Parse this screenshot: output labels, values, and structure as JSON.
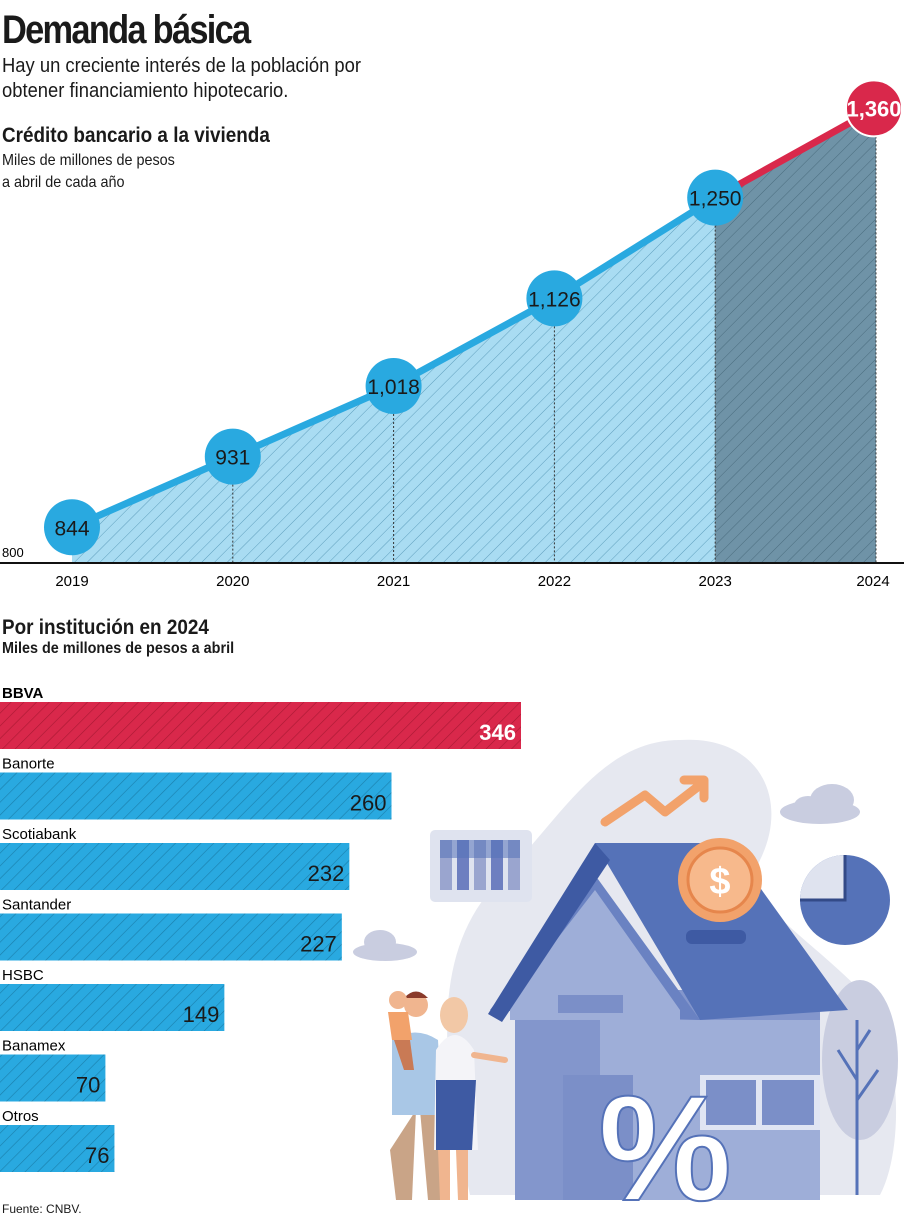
{
  "header": {
    "title": "Demanda básica",
    "subtitle": "Hay un creciente interés de la población por obtener financiamiento hipotecario."
  },
  "chart_data": [
    {
      "type": "area",
      "title": "Crédito bancario a la vivienda",
      "unit_line1": "Miles de millones de pesos",
      "unit_line2": "a abril de cada año",
      "x": [
        "2019",
        "2020",
        "2021",
        "2022",
        "2023",
        "2024"
      ],
      "values": [
        844,
        931,
        1018,
        1126,
        1250,
        1360
      ],
      "labels": [
        "844",
        "931",
        "1,018",
        "1,126",
        "1,250",
        "1,360"
      ],
      "y_min_label": "800",
      "ylim": [
        800,
        1390
      ],
      "highlight_index": 5
    },
    {
      "type": "bar",
      "title": "Por institución en 2024",
      "unit": "Miles de millones de pesos a abril",
      "categories": [
        "BBVA",
        "Banorte",
        "Scotiabank",
        "Santander",
        "HSBC",
        "Banamex",
        "Otros"
      ],
      "values": [
        346,
        260,
        232,
        227,
        149,
        70,
        76
      ],
      "highlight_index": 0
    }
  ],
  "footer": {
    "source": "Fuente: CNBV."
  },
  "colors": {
    "blue_line": "#29a9e0",
    "blue_fill": "#a9dcf2",
    "red": "#d9284b",
    "dark_area": "#6f93a7",
    "illustration_blue": "#5572b8",
    "illustration_light": "#e6e8f0"
  },
  "illustration": {
    "icons": [
      "house-icon",
      "coin-dollar-icon",
      "percent-icon",
      "family-icon",
      "trend-arrow-icon",
      "pie-chart-icon",
      "bar-chart-icon",
      "cloud-icon",
      "tree-icon"
    ],
    "coin_symbol": "$",
    "percent_symbol": "%"
  }
}
